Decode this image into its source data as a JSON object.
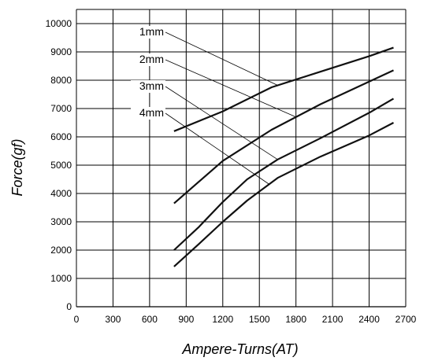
{
  "chart_data": {
    "type": "line",
    "title": "",
    "xlabel": "Ampere-Turns(AT)",
    "ylabel": "Force(gf)",
    "xlim": [
      0,
      2700
    ],
    "ylim": [
      0,
      10500
    ],
    "x_ticks": [
      "0",
      "300",
      "600",
      "900",
      "1200",
      "1500",
      "1800",
      "2100",
      "2400",
      "2700"
    ],
    "y_ticks": [
      "0",
      "1000",
      "2000",
      "3000",
      "4000",
      "5000",
      "6000",
      "7000",
      "8000",
      "9000",
      "10000"
    ],
    "grid": true,
    "series": [
      {
        "name": "1mm",
        "x": [
          800,
          1200,
          1600,
          2000,
          2400,
          2600
        ],
        "y": [
          6200,
          6900,
          7750,
          8300,
          8850,
          9150
        ]
      },
      {
        "name": "2mm",
        "x": [
          800,
          1000,
          1200,
          1600,
          2000,
          2400,
          2600
        ],
        "y": [
          3650,
          4400,
          5150,
          6250,
          7150,
          7950,
          8350
        ]
      },
      {
        "name": "3mm",
        "x": [
          800,
          1000,
          1200,
          1400,
          1650,
          2000,
          2400,
          2600
        ],
        "y": [
          2000,
          2800,
          3700,
          4500,
          5200,
          5950,
          6850,
          7350
        ]
      },
      {
        "name": "4mm",
        "x": [
          800,
          1000,
          1200,
          1400,
          1650,
          2000,
          2400,
          2600
        ],
        "y": [
          1420,
          2200,
          3000,
          3750,
          4550,
          5300,
          6050,
          6500
        ]
      }
    ]
  }
}
